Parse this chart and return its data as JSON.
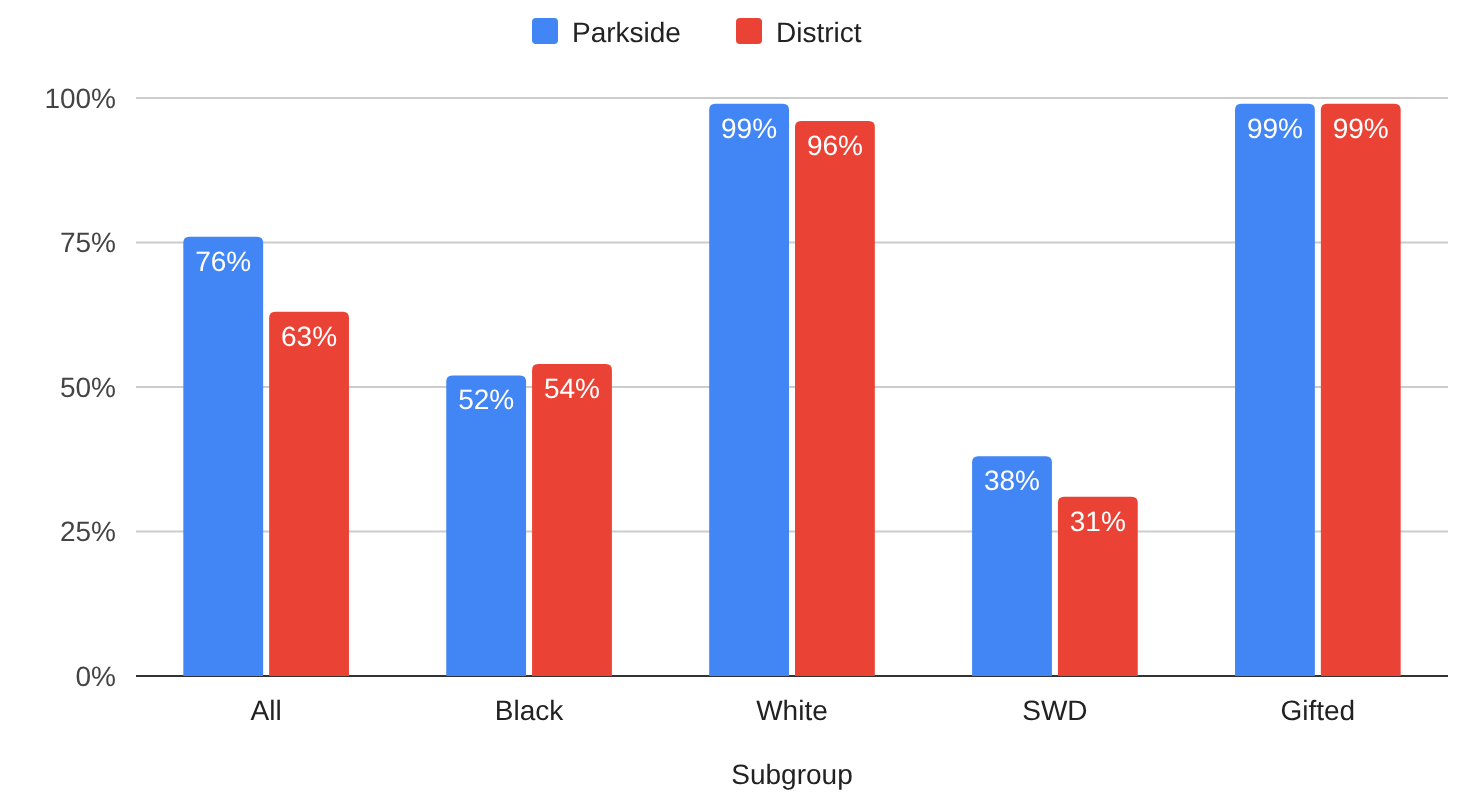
{
  "chart_data": {
    "type": "bar",
    "xlabel": "Subgroup",
    "categories": [
      "All",
      "Black",
      "White",
      "SWD",
      "Gifted"
    ],
    "series": [
      {
        "name": "Parkside",
        "color": "#4285f4",
        "values": [
          76,
          52,
          99,
          38,
          99
        ],
        "value_labels": [
          "76%",
          "52%",
          "99%",
          "38%",
          "99%"
        ]
      },
      {
        "name": "District",
        "color": "#ea4335",
        "values": [
          63,
          54,
          96,
          31,
          99
        ],
        "value_labels": [
          "63%",
          "54%",
          "96%",
          "31%",
          "99%"
        ]
      }
    ],
    "ylim": [
      0,
      100
    ],
    "yticks": [
      {
        "value": 0,
        "label": "0%"
      },
      {
        "value": 25,
        "label": "25%"
      },
      {
        "value": 50,
        "label": "50%"
      },
      {
        "value": 75,
        "label": "75%"
      },
      {
        "value": 100,
        "label": "100%"
      }
    ],
    "grid": "y",
    "legend": "top"
  }
}
